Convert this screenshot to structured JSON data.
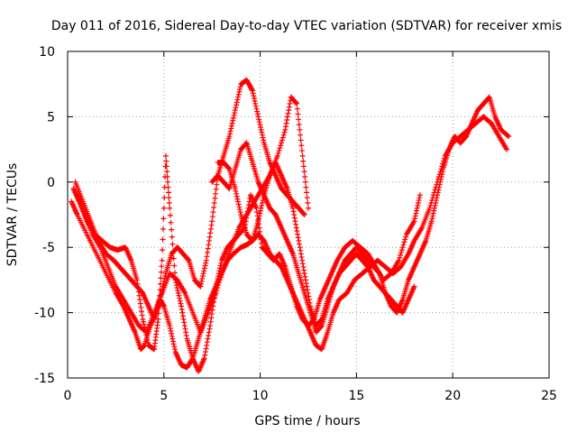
{
  "chart_data": {
    "type": "scatter",
    "title": "Day 011 of 2016, Sidereal Day-to-day VTEC variation (SDTVAR) for receiver xmis",
    "xlabel": "GPS time / hours",
    "ylabel": "SDTVAR / TECUs",
    "xlim": [
      0,
      25
    ],
    "ylim": [
      -15,
      10
    ],
    "xticks": [
      0,
      5,
      10,
      15,
      20,
      25
    ],
    "yticks": [
      -15,
      -10,
      -5,
      0,
      5,
      10
    ],
    "grid": true,
    "marker": "plus",
    "color": "#ff0000",
    "series": [
      {
        "x": [
          0.2,
          0.5,
          1.0,
          1.5,
          2.0,
          2.5,
          2.9,
          3.2,
          3.5,
          3.8,
          4.0,
          4.3,
          4.6,
          4.8,
          5.0,
          5.3,
          5.6,
          5.9,
          6.2,
          6.5,
          6.8,
          7.1,
          7.4,
          7.7,
          8.0,
          8.3,
          8.6,
          9.0,
          9.3,
          9.6,
          9.9,
          10.2,
          10.5,
          10.8,
          11.1,
          11.4,
          11.7,
          12.0,
          12.3,
          12.6,
          12.9,
          13.2,
          13.5,
          13.8,
          14.1,
          14.5,
          14.9,
          15.3,
          15.7,
          16.1,
          16.5,
          16.9,
          17.3,
          17.7,
          18.0,
          18.4,
          18.8,
          19.2,
          19.6,
          20.0,
          20.4,
          20.8,
          21.2,
          21.6,
          22.0,
          22.4,
          22.8
        ],
        "y": [
          -1.5,
          -2.5,
          -4.0,
          -5.5,
          -7.0,
          -8.5,
          -9.5,
          -10.5,
          -11.5,
          -12.8,
          -12.5,
          -11.0,
          -10.0,
          -9.0,
          -9.5,
          -11.0,
          -13.0,
          -14.0,
          -14.2,
          -13.5,
          -12.0,
          -10.5,
          -9.0,
          -8.0,
          -7.0,
          -6.0,
          -5.5,
          -5.0,
          -4.8,
          -4.5,
          -4.0,
          -4.5,
          -5.5,
          -6.0,
          -6.5,
          -7.5,
          -8.5,
          -9.5,
          -10.5,
          -11.5,
          -12.5,
          -12.8,
          -11.5,
          -10.0,
          -9.0,
          -8.5,
          -7.5,
          -7.0,
          -6.5,
          -6.0,
          -6.5,
          -7.0,
          -6.5,
          -5.5,
          -4.5,
          -3.5,
          -2.0,
          0.0,
          2.0,
          3.0,
          3.5,
          4.0,
          4.5,
          5.0,
          4.5,
          3.5,
          2.5
        ]
      },
      {
        "x": [
          0.3,
          0.6,
          1.0,
          1.4,
          1.8,
          2.2,
          2.6,
          3.0,
          3.3,
          3.6,
          3.9,
          4.2,
          4.5,
          4.7,
          4.9,
          5.1,
          5.3,
          5.6,
          5.9,
          6.2,
          6.5,
          6.8,
          7.1,
          7.4,
          7.7,
          8.0,
          8.3,
          8.6,
          8.9,
          9.2,
          9.5,
          9.8,
          10.1,
          10.4,
          10.7,
          11.0,
          11.3,
          11.6,
          11.9,
          12.2,
          12.5,
          12.8,
          13.1,
          13.4,
          13.7,
          14.0,
          14.4,
          14.8,
          15.2,
          15.6,
          16.0,
          16.4,
          16.8,
          17.2,
          17.6,
          18.0,
          18.3
        ],
        "y": [
          -0.5,
          -1.5,
          -3.0,
          -4.0,
          -4.5,
          -5.0,
          -5.2,
          -5.0,
          -6.0,
          -7.5,
          -10.5,
          -12.5,
          -12.8,
          -10.5,
          -6.0,
          2.0,
          -2.0,
          -7.5,
          -9.5,
          -12.0,
          -13.5,
          -14.5,
          -13.5,
          -11.0,
          -8.0,
          -6.0,
          -5.0,
          -4.5,
          -4.0,
          -3.5,
          -1.0,
          -2.0,
          -5.0,
          -5.5,
          -6.0,
          -5.5,
          -6.5,
          -8.0,
          -9.5,
          -10.5,
          -11.0,
          -10.5,
          -9.0,
          -8.0,
          -7.0,
          -6.0,
          -5.0,
          -4.5,
          -5.0,
          -5.5,
          -6.5,
          -7.5,
          -7.0,
          -6.0,
          -4.0,
          -3.0,
          -1.0
        ]
      },
      {
        "x": [
          0.4,
          0.8,
          1.2,
          1.6,
          2.0,
          2.4,
          2.7,
          3.0,
          3.3,
          3.6,
          3.9,
          4.2,
          4.5,
          4.8,
          5.1,
          5.4,
          5.7,
          6.0,
          6.3,
          6.6,
          6.9,
          7.2,
          7.5,
          7.8,
          8.1,
          8.4,
          8.7,
          9.0,
          9.3,
          9.6,
          9.9,
          10.2,
          10.5,
          10.8,
          11.1,
          11.4,
          11.7,
          12.0,
          12.3
        ],
        "y": [
          0.0,
          -1.5,
          -3.0,
          -4.5,
          -5.5,
          -6.0,
          -6.5,
          -7.0,
          -7.5,
          -8.0,
          -8.5,
          -9.5,
          -10.5,
          -9.0,
          -7.0,
          -5.5,
          -5.0,
          -5.5,
          -6.0,
          -7.5,
          -8.0,
          -6.0,
          -3.0,
          0.5,
          2.0,
          3.5,
          5.5,
          7.5,
          7.8,
          7.0,
          5.0,
          3.0,
          1.5,
          0.5,
          -0.5,
          -1.0,
          -1.5,
          -2.0,
          -2.5
        ]
      },
      {
        "x": [
          0.5,
          0.9,
          1.3,
          1.7,
          2.1,
          2.5,
          2.9,
          3.3,
          3.7,
          4.1,
          4.5,
          4.9,
          5.3,
          5.7,
          6.1,
          6.5,
          6.9,
          7.3,
          7.7,
          8.1,
          8.5,
          8.9,
          9.3,
          9.7,
          10.1,
          10.5,
          10.9,
          11.3,
          11.6,
          11.9,
          12.2,
          12.5
        ],
        "y": [
          -1.0,
          -2.5,
          -4.0,
          -5.0,
          -6.5,
          -8.0,
          -9.0,
          -10.0,
          -11.0,
          -11.5,
          -10.0,
          -8.5,
          -7.0,
          -7.5,
          -8.5,
          -10.0,
          -11.5,
          -10.0,
          -8.5,
          -6.5,
          -5.0,
          -3.5,
          -2.5,
          -1.5,
          -0.5,
          0.5,
          2.0,
          4.0,
          6.5,
          6.0,
          2.0,
          -2.0
        ]
      },
      {
        "x": [
          7.5,
          7.8,
          8.1,
          8.4,
          8.7,
          9.0,
          9.3,
          9.6,
          9.9,
          10.2,
          10.5,
          10.8,
          11.1,
          11.4,
          11.7,
          12.0,
          12.3,
          12.6,
          12.9,
          13.2,
          13.5,
          13.8,
          14.1,
          14.4,
          14.7,
          15.0,
          15.3,
          15.6,
          15.9,
          16.2,
          16.5,
          16.8,
          17.1,
          17.4,
          17.7,
          18.0,
          18.3,
          18.6,
          18.9,
          19.2,
          19.5,
          19.8,
          20.1,
          20.4,
          20.7,
          21.0,
          21.3,
          21.6,
          21.9,
          22.2,
          22.5,
          22.9
        ],
        "y": [
          0.0,
          0.5,
          0.0,
          -0.5,
          1.0,
          2.5,
          3.0,
          1.5,
          0.0,
          -1.0,
          -2.0,
          -2.5,
          -3.5,
          -4.5,
          -5.5,
          -7.0,
          -8.5,
          -10.0,
          -11.5,
          -11.0,
          -9.5,
          -8.0,
          -7.0,
          -6.0,
          -5.5,
          -5.0,
          -5.5,
          -6.0,
          -6.5,
          -7.0,
          -8.5,
          -9.5,
          -10.0,
          -9.0,
          -7.5,
          -6.5,
          -5.5,
          -4.5,
          -3.0,
          -1.0,
          1.0,
          2.5,
          3.5,
          3.0,
          3.5,
          4.5,
          5.5,
          6.0,
          6.5,
          5.0,
          4.0,
          3.5
        ]
      },
      {
        "x": [
          7.8,
          8.1,
          8.4,
          8.7,
          9.0,
          9.3,
          9.6,
          9.9,
          10.2,
          10.5,
          10.8,
          11.1,
          11.4,
          11.7,
          12.0,
          12.3,
          12.6,
          12.9,
          13.2,
          13.5,
          13.8,
          14.1,
          14.4,
          14.7,
          15.0,
          15.3,
          15.6,
          15.9,
          16.2,
          16.5,
          16.8,
          17.1,
          17.4,
          17.7,
          18.0
        ],
        "y": [
          1.5,
          1.5,
          1.0,
          -0.5,
          -2.5,
          -4.0,
          -4.5,
          -3.0,
          -1.0,
          0.5,
          1.5,
          0.5,
          -0.5,
          -2.0,
          -4.5,
          -7.0,
          -9.5,
          -11.0,
          -10.5,
          -9.0,
          -8.0,
          -7.0,
          -6.5,
          -6.0,
          -5.5,
          -6.0,
          -6.5,
          -7.5,
          -8.0,
          -8.5,
          -9.0,
          -9.5,
          -10.0,
          -9.0,
          -8.0
        ]
      }
    ]
  }
}
